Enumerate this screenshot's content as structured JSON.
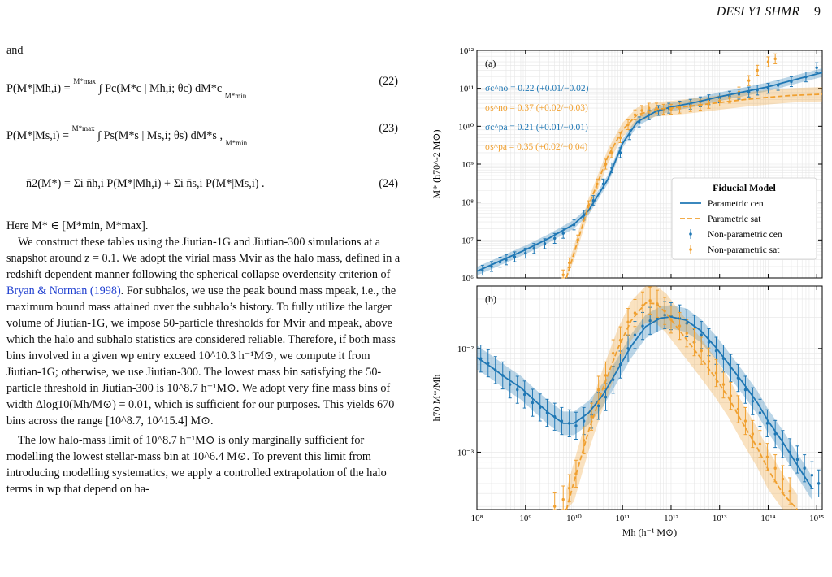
{
  "header": {
    "title": "DESI Y1 SHMR",
    "page": "9"
  },
  "text": {
    "p_and": "and",
    "eq22": {
      "lhs": "P(M*|Mh,i) =",
      "integral": "∫ Pc(M*c | Mh,i; θc) dM*c",
      "lower": "M*min",
      "upper": "M*max",
      "num": "(22)"
    },
    "eq23": {
      "lhs": "P(M*|Ms,i) =",
      "integral": "∫ Ps(M*s | Ms,i; θs) dM*s ,",
      "lower": "M*min",
      "upper": "M*max",
      "num": "(23)"
    },
    "eq24": {
      "lhs": "n̄2(M*) =",
      "rhs": "Σi n̄h,i P(M*|Mh,i) + Σi n̄s,i P(M*|Ms,i) .",
      "num": "(24)"
    },
    "here": "Here M* ∈ [M*min, M*max].",
    "para1": "We construct these tables using the Jiutian-1G and Jiutian-300 simulations at a snapshot around z = 0.1. We adopt the virial mass Mvir as the halo mass, defined in a redshift dependent manner following the spherical collapse overdensity criterion of ",
    "cite": "Bryan & Norman (1998)",
    "para1b": ". For subhalos, we use the peak bound mass mpeak, i.e., the maximum bound mass attained over the subhalo’s history. To fully utilize the larger volume of Jiutian-1G, we impose 50-particle thresholds for Mvir and mpeak, above which the halo and subhalo statistics are considered reliable. Therefore, if both mass bins involved in a given wp entry exceed 10^10.3 h⁻¹M⊙, we compute it from Jiutian-1G; otherwise, we use Jiutian-300. The lowest mass bin satisfying the 50-particle threshold in Jiutian-300 is 10^8.7 h⁻¹M⊙. We adopt very fine mass bins of width Δlog10(Mh/M⊙) = 0.01, which is sufficient for our purposes. This yields 670 bins across the range [10^8.7, 10^15.4] M⊙.",
    "para2": "The low halo-mass limit of 10^8.7 h⁻¹M⊙ is only marginally sufficient for modelling the lowest stellar-mass bin at 10^6.4 M⊙. To prevent this limit from introducing modelling systematics, we apply a controlled extrapolation of the halo terms in wp that depend on ha-"
  },
  "colors": {
    "cen": "#1f77b4",
    "sat": "#f0a030",
    "grid": "#e6e6e6"
  },
  "chart_data": [
    {
      "type": "line",
      "panel_label": "(a)",
      "xlabel": "",
      "ylabel": "M* (h70^-2 M⊙)",
      "xscale": "log",
      "yscale": "log",
      "xlim": [
        100000000.0,
        1300000000000000.0
      ],
      "ylim": [
        1000000.0,
        1000000000000.0
      ],
      "y_ticks": [
        "10⁶",
        "10⁷",
        "10⁸",
        "10⁹",
        "10¹⁰",
        "10¹¹",
        "10¹²"
      ],
      "grid": true,
      "legend": {
        "title": "Fiducial Model",
        "placement": "lower-right",
        "entries": [
          "Parametric cen",
          "Parametric sat",
          "Non-parametric cen",
          "Non-parametric sat"
        ]
      },
      "annotations": [
        {
          "text": "σc^no = 0.22 (+0.01/−0.02)",
          "color": "cen"
        },
        {
          "text": "σs^no = 0.37 (+0.02/−0.03)",
          "color": "sat"
        },
        {
          "text": "σc^pa = 0.21 (+0.01/−0.01)",
          "color": "cen"
        },
        {
          "text": "σs^pa = 0.35 (+0.02/−0.04)",
          "color": "sat"
        }
      ],
      "series": [
        {
          "name": "Parametric cen",
          "style": "solid",
          "color": "cen",
          "x": [
            100000000.0,
            300000000.0,
            1000000000.0,
            3000000000.0,
            10000000000.0,
            20000000000.0,
            50000000000.0,
            100000000000.0,
            200000000000.0,
            500000000000.0,
            1000000000000.0,
            3000000000000.0,
            10000000000000.0,
            30000000000000.0,
            100000000000000.0,
            300000000000000.0,
            1300000000000000.0
          ],
          "y": [
            1500000.0,
            2800000.0,
            5500000.0,
            11000000.0,
            26000000.0,
            60000000.0,
            400000000.0,
            3500000000.0,
            13000000000.0,
            25000000000.0,
            32000000000.0,
            42000000000.0,
            60000000000.0,
            80000000000.0,
            110000000000.0,
            160000000000.0,
            260000000000.0
          ]
        },
        {
          "name": "Parametric sat",
          "style": "dashed",
          "color": "sat",
          "x": [
            7000000000.0,
            10000000000.0,
            20000000000.0,
            50000000000.0,
            100000000000.0,
            200000000000.0,
            500000000000.0,
            1000000000000.0,
            3000000000000.0,
            10000000000000.0,
            30000000000000.0,
            100000000000000.0,
            300000000000000.0,
            1300000000000000.0
          ],
          "y": [
            1000000.0,
            4500000.0,
            80000000.0,
            1600000000.0,
            8000000000.0,
            20000000000.0,
            28000000000.0,
            30000000000.0,
            35000000000.0,
            42000000000.0,
            50000000000.0,
            58000000000.0,
            65000000000.0,
            70000000000.0
          ]
        },
        {
          "name": "Non-parametric cen",
          "style": "points",
          "color": "cen",
          "x": [
            130000000.0,
            200000000.0,
            300000000.0,
            400000000.0,
            600000000.0,
            1000000000.0,
            1500000000.0,
            2500000000.0,
            4000000000.0,
            6000000000.0,
            10000000000.0,
            16000000000.0,
            25000000000.0,
            40000000000.0,
            60000000000.0,
            90000000000.0,
            140000000000.0,
            220000000000.0,
            350000000000.0,
            550000000000.0,
            900000000000.0,
            1500000000000.0,
            2500000000000.0,
            4000000000000.0,
            6000000000000.0,
            10000000000000.0,
            16000000000000.0,
            25000000000000.0,
            40000000000000.0,
            60000000000000.0,
            100000000000000.0,
            160000000000000.0,
            300000000000000.0,
            600000000000000.0,
            1000000000000000.0
          ],
          "y": [
            1600000.0,
            2000000.0,
            2600000.0,
            3000000.0,
            3600000.0,
            4500000.0,
            6000000.0,
            8000000.0,
            11000000.0,
            15000000.0,
            25000000.0,
            45000000.0,
            110000000.0,
            300000000.0,
            800000000.0,
            2000000000.0,
            6000000000.0,
            13000000000.0,
            20000000000.0,
            26000000000.0,
            30000000000.0,
            34000000000.0,
            38000000000.0,
            44000000000.0,
            50000000000.0,
            56000000000.0,
            62000000000.0,
            70000000000.0,
            80000000000.0,
            90000000000.0,
            100000000000.0,
            120000000000.0,
            150000000000.0,
            200000000000.0,
            350000000000.0
          ]
        },
        {
          "name": "Non-parametric sat",
          "style": "points",
          "color": "sat",
          "x": [
            6000000000.0,
            8000000000.0,
            12000000000.0,
            20000000000.0,
            30000000000.0,
            45000000000.0,
            60000000000.0,
            90000000000.0,
            130000000000.0,
            180000000000.0,
            250000000000.0,
            350000000000.0,
            500000000000.0,
            700000000000.0,
            1000000000000.0,
            1500000000000.0,
            2500000000000.0,
            4000000000000.0,
            6000000000000.0,
            10000000000000.0,
            16000000000000.0,
            25000000000000.0,
            40000000000000.0,
            60000000000000.0,
            100000000000000.0,
            140000000000000.0
          ],
          "y": [
            1200000.0,
            2500000.0,
            10000000.0,
            80000000.0,
            300000000.0,
            1000000000.0,
            2000000000.0,
            5000000000.0,
            11000000000.0,
            20000000000.0,
            26000000000.0,
            30000000000.0,
            30000000000.0,
            28000000000.0,
            28000000000.0,
            30000000000.0,
            33000000000.0,
            36000000000.0,
            40000000000.0,
            46000000000.0,
            55000000000.0,
            80000000000.0,
            160000000000.0,
            300000000000.0,
            500000000000.0,
            600000000000.0
          ]
        }
      ]
    },
    {
      "type": "line",
      "panel_label": "(b)",
      "xlabel": "Mh (h⁻¹ M⊙)",
      "ylabel": "h70 M*/Mh",
      "xscale": "log",
      "yscale": "log",
      "xlim": [
        100000000.0,
        1300000000000000.0
      ],
      "ylim": [
        0.00028,
        0.04
      ],
      "x_ticks": [
        "10⁸",
        "10⁹",
        "10¹⁰",
        "10¹¹",
        "10¹²",
        "10¹³",
        "10¹⁴",
        "10¹⁵"
      ],
      "y_ticks": [
        "10⁻³",
        "10⁻²"
      ],
      "grid": true,
      "series": [
        {
          "name": "Parametric cen",
          "style": "solid",
          "color": "cen",
          "x": [
            100000000.0,
            200000000.0,
            400000000.0,
            800000000.0,
            1500000000.0,
            3000000000.0,
            6000000000.0,
            10000000000.0,
            20000000000.0,
            40000000000.0,
            80000000000.0,
            150000000000.0,
            300000000000.0,
            600000000000.0,
            1000000000000.0,
            2000000000000.0,
            4000000000000.0,
            8000000000000.0,
            15000000000000.0,
            30000000000000.0,
            60000000000000.0,
            100000000000000.0,
            200000000000000.0,
            400000000000000.0,
            800000000000000.0
          ],
          "y": [
            0.0082,
            0.0066,
            0.0052,
            0.0042,
            0.0032,
            0.0024,
            0.0019,
            0.0019,
            0.0024,
            0.0036,
            0.0063,
            0.0105,
            0.0163,
            0.0196,
            0.0202,
            0.0188,
            0.015,
            0.0105,
            0.0072,
            0.0047,
            0.003,
            0.002,
            0.00125,
            0.00075,
            0.00045
          ]
        },
        {
          "name": "Parametric sat",
          "style": "dashed",
          "color": "sat",
          "x": [
            7000000000.0,
            10000000000.0,
            20000000000.0,
            40000000000.0,
            80000000000.0,
            150000000000.0,
            300000000000.0,
            500000000000.0,
            800000000000.0,
            1200000000000.0,
            2000000000000.0,
            4000000000000.0,
            8000000000000.0,
            15000000000000.0,
            30000000000000.0,
            60000000000000.0,
            100000000000000.0,
            200000000000000.0,
            400000000000000.0
          ],
          "y": [
            0.00028,
            0.00052,
            0.0016,
            0.0042,
            0.01,
            0.0185,
            0.0275,
            0.027,
            0.0218,
            0.017,
            0.0125,
            0.0082,
            0.0053,
            0.0034,
            0.0019,
            0.0011,
            0.00068,
            0.0004,
            0.00025
          ]
        },
        {
          "name": "Non-parametric cen",
          "style": "points",
          "color": "cen",
          "x": [
            120000000.0,
            170000000.0,
            240000000.0,
            340000000.0,
            480000000.0,
            680000000.0,
            960000000.0,
            1400000000.0,
            2000000000.0,
            2800000000.0,
            4000000000.0,
            5600000000.0,
            8000000000.0,
            11000000000.0,
            16000000000.0,
            23000000000.0,
            32000000000.0,
            45000000000.0,
            64000000000.0,
            90000000000.0,
            130000000000.0,
            180000000000.0,
            260000000000.0,
            370000000000.0,
            520000000000.0,
            740000000000.0,
            1000000000000.0,
            1500000000000.0,
            2100000000000.0,
            3000000000000.0,
            4200000000000.0,
            6000000000000.0,
            8500000000000.0,
            12000000000000.0,
            17000000000000.0,
            24000000000000.0,
            34000000000000.0,
            48000000000000.0,
            68000000000000.0,
            96000000000000.0,
            140000000000000.0,
            200000000000000.0,
            280000000000000.0,
            400000000000000.0,
            560000000000000.0,
            800000000000000.0,
            1100000000000000.0
          ],
          "y": [
            0.008,
            0.0072,
            0.0062,
            0.0055,
            0.0045,
            0.004,
            0.0036,
            0.003,
            0.0027,
            0.0024,
            0.0022,
            0.002,
            0.0019,
            0.0018,
            0.002,
            0.0023,
            0.0028,
            0.0034,
            0.005,
            0.007,
            0.01,
            0.0135,
            0.0165,
            0.0185,
            0.0195,
            0.021,
            0.0205,
            0.0195,
            0.0175,
            0.0155,
            0.0135,
            0.0115,
            0.0095,
            0.008,
            0.0065,
            0.0052,
            0.004,
            0.0031,
            0.0024,
            0.0019,
            0.0015,
            0.0012,
            0.001,
            0.00085,
            0.0007,
            0.0006,
            0.0005
          ]
        },
        {
          "name": "Non-parametric sat",
          "style": "points",
          "color": "sat",
          "x": [
            4000000000.0,
            6000000000.0,
            8000000000.0,
            11000000000.0,
            16000000000.0,
            23000000000.0,
            32000000000.0,
            45000000000.0,
            64000000000.0,
            90000000000.0,
            130000000000.0,
            180000000000.0,
            260000000000.0,
            370000000000.0,
            520000000000.0,
            740000000000.0,
            1000000000000.0,
            1500000000000.0,
            2100000000000.0,
            3000000000000.0,
            4200000000000.0,
            6000000000000.0,
            8500000000000.0,
            12000000000000.0,
            17000000000000.0,
            24000000000000.0,
            34000000000000.0,
            48000000000000.0,
            68000000000000.0,
            96000000000000.0,
            140000000000000.0,
            200000000000000.0,
            280000000000000.0
          ],
          "y": [
            0.0003,
            0.00035,
            0.00045,
            0.00062,
            0.0013,
            0.0022,
            0.004,
            0.0055,
            0.009,
            0.012,
            0.018,
            0.022,
            0.026,
            0.029,
            0.027,
            0.023,
            0.019,
            0.0165,
            0.014,
            0.0115,
            0.0095,
            0.0075,
            0.0058,
            0.0045,
            0.0035,
            0.0026,
            0.002,
            0.0015,
            0.0012,
            0.0009,
            0.0007,
            0.00055,
            0.00042
          ]
        }
      ]
    }
  ]
}
